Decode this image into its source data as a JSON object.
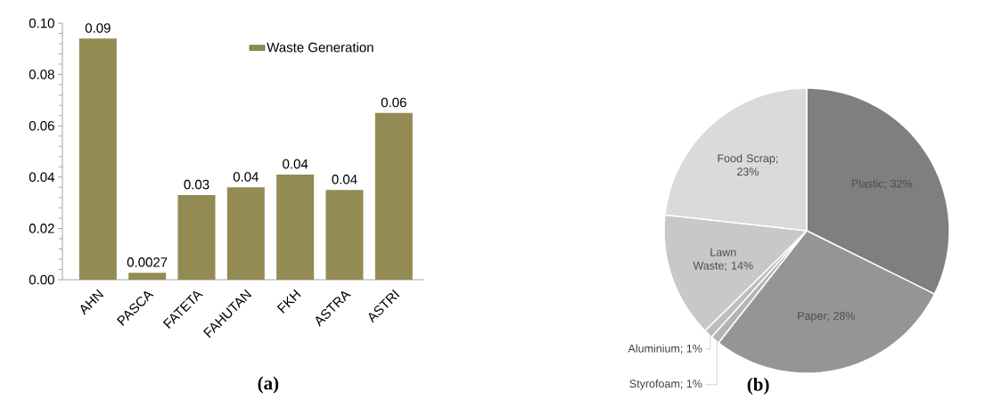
{
  "chart_data": [
    {
      "type": "bar",
      "categories": [
        "AHN",
        "PASCA",
        "FATETA",
        "FAHUTAN",
        "FKH",
        "ASTRA",
        "ASTRI"
      ],
      "series": [
        {
          "name": "Waste Generation",
          "color": "#948a54",
          "values": [
            0.094,
            0.0027,
            0.033,
            0.036,
            0.041,
            0.035,
            0.065
          ],
          "value_labels": [
            "0.09",
            "0.0027",
            "0.03",
            "0.04",
            "0.04",
            "0.04",
            "0.06"
          ]
        }
      ],
      "ylim": [
        0,
        0.1
      ],
      "yticks": [
        {
          "value": 0,
          "label": "0.00"
        },
        {
          "value": 0.02,
          "label": "0.02"
        },
        {
          "value": 0.04,
          "label": "0.04"
        },
        {
          "value": 0.06,
          "label": "0.06"
        },
        {
          "value": 0.08,
          "label": "0.08"
        },
        {
          "value": 0.1,
          "label": "0.10"
        }
      ],
      "legend": "top right",
      "grid": false,
      "annotations": [
        "(a)"
      ]
    },
    {
      "type": "pie",
      "categories": [
        "Plastic",
        "Paper",
        "Styrofoam",
        "Aluminium",
        "Lawn Waste",
        "Food Scrap"
      ],
      "values": [
        32,
        28,
        1,
        1,
        14,
        23
      ],
      "value_labels": [
        "; 32%",
        "; 28%",
        "; 1%",
        "; 1%",
        "; 14%",
        "; 23%"
      ],
      "colors": [
        "#7f7f7f",
        "#959595",
        "#b4b4b4",
        "#bdbdbd",
        "#c8c8c8",
        "#dadada"
      ],
      "annotations": [
        "(b)"
      ]
    }
  ]
}
